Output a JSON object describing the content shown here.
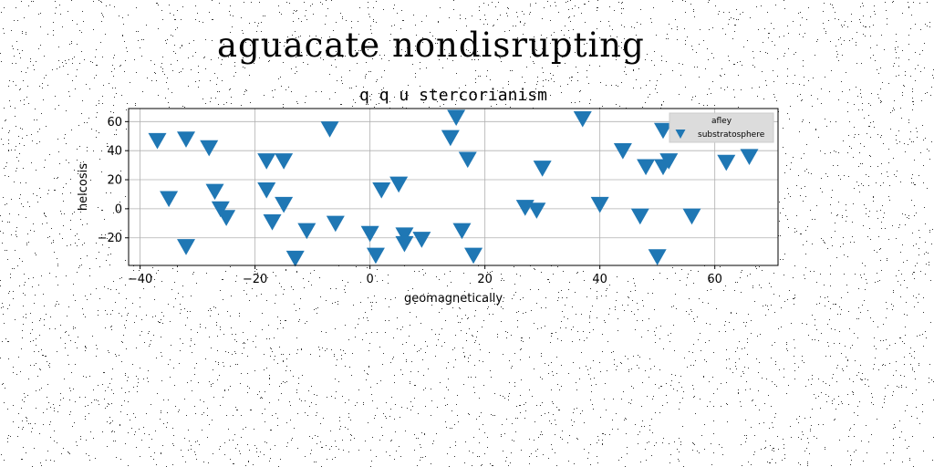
{
  "figure": {
    "title": "aguacate nondisrupting"
  },
  "colors": {
    "marker": "#1f77b4",
    "grid": "#b0b0b0",
    "legend_bg": "#dcdcdc"
  },
  "chart_data": {
    "type": "scatter",
    "title": "q q u stercorianism",
    "xlabel": "geomagnetically",
    "ylabel": "helcosis",
    "xlim": [
      -42,
      71
    ],
    "ylim": [
      -39,
      69
    ],
    "xticks": [
      -40,
      -20,
      0,
      20,
      40,
      60
    ],
    "yticks": [
      -20,
      0,
      20,
      40,
      60
    ],
    "grid": true,
    "marker": "triangle-down",
    "legend": {
      "title": "afley",
      "placement": "top-right"
    },
    "series": [
      {
        "name": "substratosphere",
        "points": [
          [
            -37,
            48
          ],
          [
            -35,
            8
          ],
          [
            -32,
            49
          ],
          [
            -32,
            -25
          ],
          [
            -28,
            43
          ],
          [
            -27,
            13
          ],
          [
            -26,
            1
          ],
          [
            -25,
            -5
          ],
          [
            -18,
            34
          ],
          [
            -18,
            14
          ],
          [
            -17,
            -8
          ],
          [
            -15,
            34
          ],
          [
            -15,
            4
          ],
          [
            -13,
            -33
          ],
          [
            -11,
            -14
          ],
          [
            -7,
            56
          ],
          [
            -6,
            -9
          ],
          [
            0,
            -16
          ],
          [
            1,
            -31
          ],
          [
            2,
            14
          ],
          [
            5,
            18
          ],
          [
            6,
            -17
          ],
          [
            6,
            -23
          ],
          [
            9,
            -20
          ],
          [
            14,
            50
          ],
          [
            15,
            64
          ],
          [
            16,
            -14
          ],
          [
            17,
            35
          ],
          [
            18,
            -31
          ],
          [
            27,
            2
          ],
          [
            29,
            0
          ],
          [
            30,
            29
          ],
          [
            37,
            63
          ],
          [
            40,
            4
          ],
          [
            44,
            41
          ],
          [
            47,
            -4
          ],
          [
            48,
            30
          ],
          [
            50,
            -32
          ],
          [
            51,
            55
          ],
          [
            51,
            30
          ],
          [
            52,
            34
          ],
          [
            56,
            -4
          ],
          [
            58,
            55
          ],
          [
            62,
            33
          ],
          [
            66,
            37
          ]
        ]
      }
    ]
  }
}
